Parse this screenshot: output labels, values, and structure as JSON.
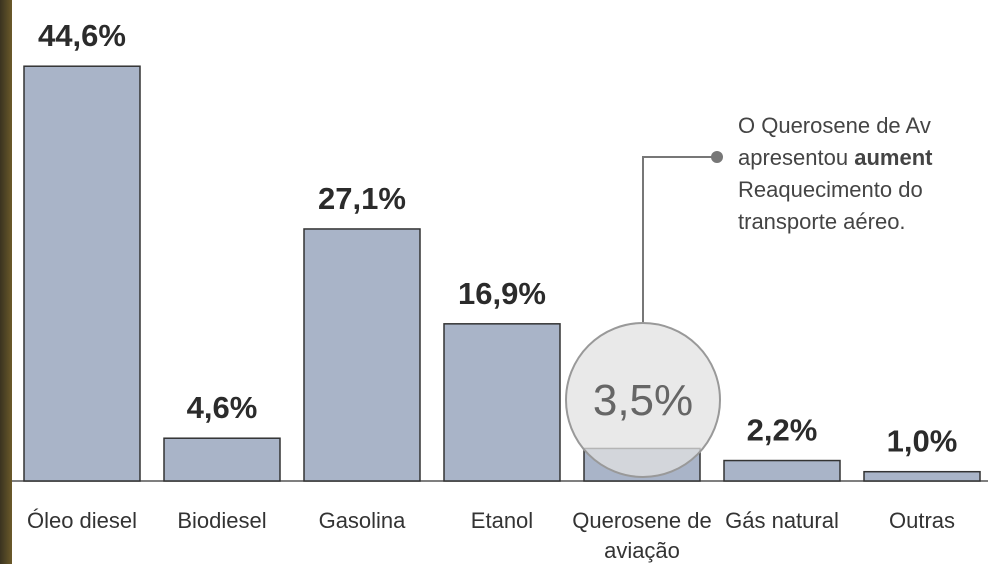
{
  "chart_data": {
    "type": "bar",
    "categories": [
      "Óleo diesel",
      "Biodiesel",
      "Gasolina",
      "Etanol",
      "Querosene de aviação",
      "Gás natural",
      "Outras"
    ],
    "values": [
      44.6,
      4.6,
      27.1,
      16.9,
      3.5,
      2.2,
      1.0
    ],
    "value_labels": [
      "44,6%",
      "4,6%",
      "27,1%",
      "16,9%",
      "3,5%",
      "2,2%",
      "1,0%"
    ],
    "color": "#a9b4c8",
    "highlight": 4,
    "annotation": {
      "line1": "O Querosene de Av",
      "line2": "apresentou",
      "line2_bold": "aument",
      "line3": "Reaquecimento do",
      "line4": "transporte aéreo."
    }
  }
}
